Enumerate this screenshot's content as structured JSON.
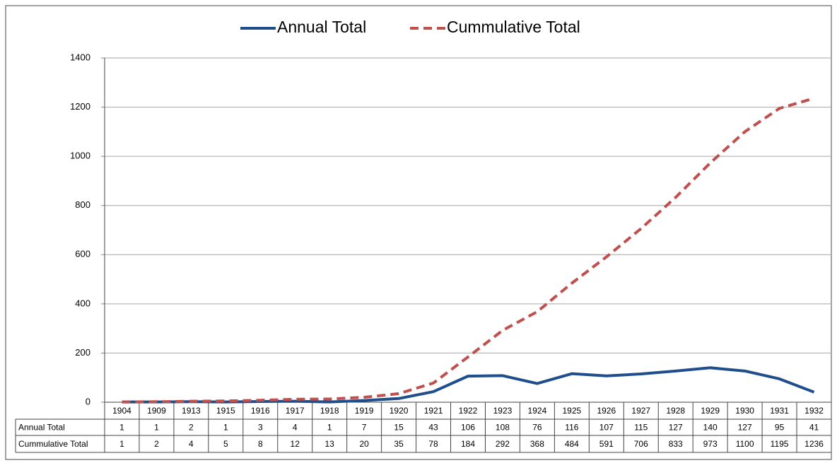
{
  "chart_data": {
    "type": "line",
    "categories": [
      "1904",
      "1909",
      "1913",
      "1915",
      "1916",
      "1917",
      "1918",
      "1919",
      "1920",
      "1921",
      "1922",
      "1923",
      "1924",
      "1925",
      "1926",
      "1927",
      "1928",
      "1929",
      "1930",
      "1931",
      "1932"
    ],
    "series": [
      {
        "name": "Annual Total",
        "color": "#1f4e8c",
        "dashed": false,
        "values": [
          1,
          1,
          2,
          1,
          3,
          4,
          1,
          7,
          15,
          43,
          106,
          108,
          76,
          116,
          107,
          115,
          127,
          140,
          127,
          95,
          41
        ]
      },
      {
        "name": "Cummulative Total",
        "color": "#c0504d",
        "dashed": true,
        "values": [
          1,
          2,
          4,
          5,
          8,
          12,
          13,
          20,
          35,
          78,
          184,
          292,
          368,
          484,
          591,
          706,
          833,
          973,
          1100,
          1195,
          1236
        ]
      }
    ],
    "ylim": [
      0,
      1400
    ],
    "yticks": [
      0,
      200,
      400,
      600,
      800,
      1000,
      1200,
      1400
    ],
    "grid": true,
    "legend": "top"
  }
}
